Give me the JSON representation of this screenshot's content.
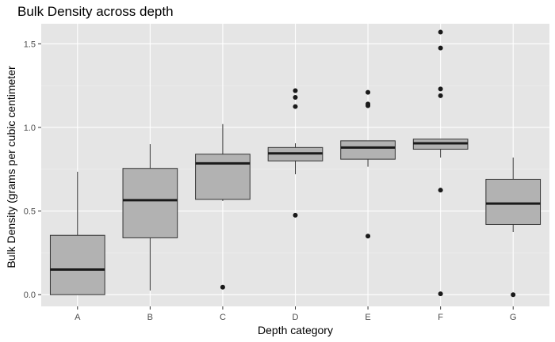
{
  "chart_data": {
    "type": "boxplot",
    "title": "Bulk Density across depth",
    "xlabel": "Depth category",
    "ylabel": "Bulk Density (grams per cubic centimeter",
    "ylim": [
      -0.07,
      1.62
    ],
    "yticks": [
      0.0,
      0.5,
      1.0,
      1.5
    ],
    "ytick_labels": [
      "0.0",
      "0.5",
      "1.0",
      "1.5"
    ],
    "grid": true,
    "categories": [
      "A",
      "B",
      "C",
      "D",
      "E",
      "F",
      "G"
    ],
    "boxes": [
      {
        "category": "A",
        "whisker_low": 0.0,
        "q1": 0.0,
        "median": 0.15,
        "q3": 0.355,
        "whisker_high": 0.735,
        "outliers": []
      },
      {
        "category": "B",
        "whisker_low": 0.025,
        "q1": 0.34,
        "median": 0.565,
        "q3": 0.755,
        "whisker_high": 0.9,
        "outliers": []
      },
      {
        "category": "C",
        "whisker_low": 0.56,
        "q1": 0.57,
        "median": 0.785,
        "q3": 0.84,
        "whisker_high": 1.02,
        "outliers": [
          0.045
        ]
      },
      {
        "category": "D",
        "whisker_low": 0.72,
        "q1": 0.8,
        "median": 0.845,
        "q3": 0.88,
        "whisker_high": 0.905,
        "outliers": [
          1.22,
          1.18,
          1.125,
          0.475
        ]
      },
      {
        "category": "E",
        "whisker_low": 0.765,
        "q1": 0.81,
        "median": 0.88,
        "q3": 0.92,
        "whisker_high": 0.92,
        "outliers": [
          1.21,
          1.14,
          1.13,
          0.35
        ]
      },
      {
        "category": "F",
        "whisker_low": 0.82,
        "q1": 0.87,
        "median": 0.905,
        "q3": 0.93,
        "whisker_high": 0.93,
        "outliers": [
          1.57,
          1.475,
          1.23,
          1.19,
          0.625,
          0.005
        ]
      },
      {
        "category": "G",
        "whisker_low": 0.375,
        "q1": 0.42,
        "median": 0.545,
        "q3": 0.69,
        "whisker_high": 0.82,
        "outliers": [
          0.0
        ]
      }
    ],
    "colors": {
      "panel_background": "#e5e5e5",
      "grid_major": "#ffffff",
      "grid_minor": "#f0f0f0",
      "box_fill": "#b2b2b2",
      "box_stroke": "#333333",
      "median": "#1a1a1a",
      "outlier": "#1a1a1a",
      "tick_label": "#4d4d4d",
      "text": "#000000"
    }
  }
}
